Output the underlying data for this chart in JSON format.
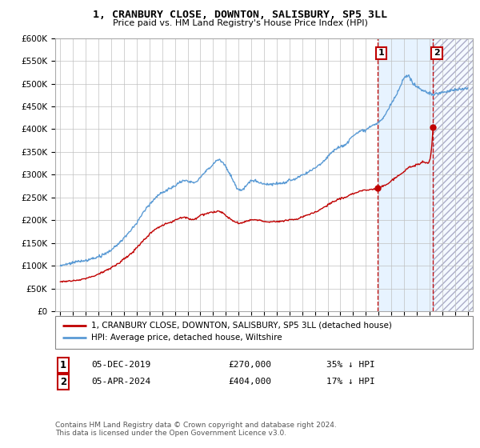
{
  "title": "1, CRANBURY CLOSE, DOWNTON, SALISBURY, SP5 3LL",
  "subtitle": "Price paid vs. HM Land Registry's House Price Index (HPI)",
  "legend_line1": "1, CRANBURY CLOSE, DOWNTON, SALISBURY, SP5 3LL (detached house)",
  "legend_line2": "HPI: Average price, detached house, Wiltshire",
  "annotation1_date": "05-DEC-2019",
  "annotation1_price": "£270,000",
  "annotation1_pct": "35% ↓ HPI",
  "annotation2_date": "05-APR-2024",
  "annotation2_price": "£404,000",
  "annotation2_pct": "17% ↓ HPI",
  "footer": "Contains HM Land Registry data © Crown copyright and database right 2024.\nThis data is licensed under the Open Government Licence v3.0.",
  "hpi_color": "#5b9bd5",
  "price_color": "#c00000",
  "background_color": "#ffffff",
  "grid_color": "#c0c0c0",
  "shade_color": "#ddeeff",
  "hatch_color": "#bbbbcc",
  "ylim": [
    0,
    600000
  ],
  "yticks": [
    0,
    50000,
    100000,
    150000,
    200000,
    250000,
    300000,
    350000,
    400000,
    450000,
    500000,
    550000,
    600000
  ],
  "xmin": 1994.6,
  "xmax": 2027.4,
  "sale1_x": 2019.92,
  "sale1_y": 270000,
  "sale2_x": 2024.28,
  "sale2_y": 404000,
  "shade_start": 2020.0,
  "shade_end": 2024.28,
  "hatch_start": 2024.28,
  "hatch_end": 2027.4
}
